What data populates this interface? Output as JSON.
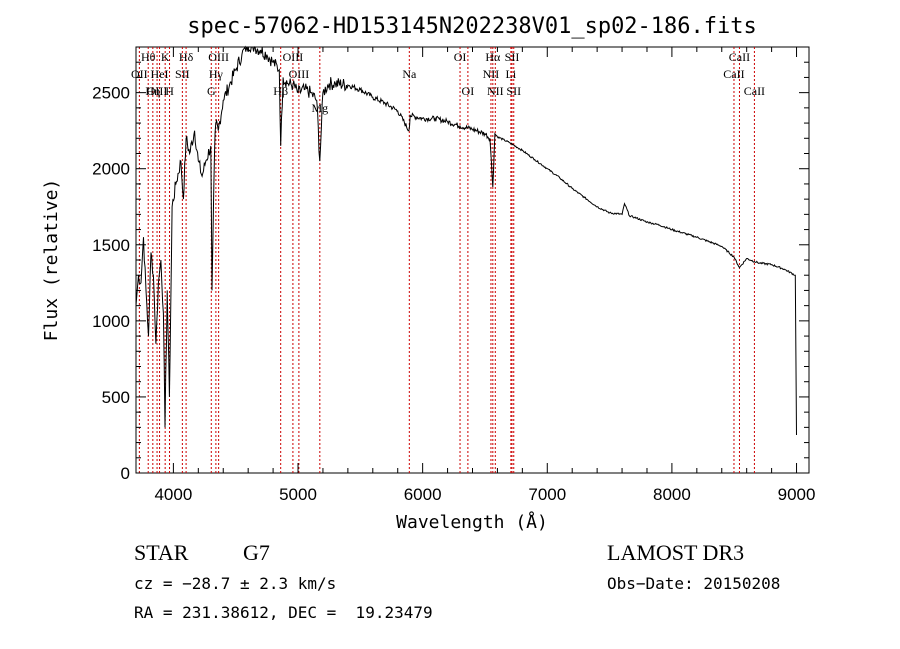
{
  "chart_data": {
    "type": "line",
    "title": "spec-57062-HD153145N202238V01_sp02-186.fits",
    "xlabel": "Wavelength (Å)",
    "ylabel": "Flux (relative)",
    "xlim": [
      3700,
      9100
    ],
    "ylim": [
      0,
      2800
    ],
    "xticks": [
      4000,
      5000,
      6000,
      7000,
      8000,
      9000
    ],
    "yticks": [
      0,
      500,
      1000,
      1500,
      2000,
      2500
    ],
    "series": [
      {
        "name": "flux",
        "x": [
          3700,
          3720,
          3740,
          3760,
          3780,
          3800,
          3820,
          3840,
          3860,
          3880,
          3900,
          3920,
          3933,
          3950,
          3968,
          3990,
          4020,
          4060,
          4080,
          4102,
          4130,
          4170,
          4200,
          4230,
          4260,
          4300,
          4310,
          4330,
          4340,
          4360,
          4400,
          4450,
          4500,
          4550,
          4600,
          4650,
          4700,
          4750,
          4800,
          4850,
          4861,
          4880,
          4920,
          4960,
          5000,
          5050,
          5100,
          5150,
          5175,
          5200,
          5250,
          5300,
          5400,
          5500,
          5600,
          5700,
          5800,
          5890,
          5900,
          6000,
          6100,
          6200,
          6300,
          6400,
          6500,
          6540,
          6563,
          6580,
          6600,
          6700,
          6800,
          6900,
          7000,
          7100,
          7200,
          7300,
          7400,
          7500,
          7600,
          7620,
          7660,
          7700,
          7800,
          7900,
          8000,
          8200,
          8400,
          8498,
          8542,
          8600,
          8662,
          8700,
          8800,
          8900,
          8990,
          9000
        ],
        "values": [
          1100,
          1300,
          1250,
          1550,
          1200,
          900,
          1450,
          1300,
          850,
          1250,
          1400,
          1050,
          300,
          1200,
          500,
          1750,
          1900,
          2050,
          1800,
          2200,
          2100,
          2250,
          2050,
          1950,
          2050,
          2150,
          1200,
          2100,
          2300,
          2250,
          2450,
          2550,
          2650,
          2750,
          2820,
          2800,
          2780,
          2750,
          2700,
          2650,
          2150,
          2600,
          2560,
          2550,
          2500,
          2520,
          2500,
          2450,
          2050,
          2500,
          2560,
          2560,
          2550,
          2520,
          2470,
          2430,
          2380,
          2250,
          2350,
          2330,
          2330,
          2310,
          2280,
          2260,
          2230,
          2200,
          1880,
          2230,
          2210,
          2170,
          2120,
          2060,
          2000,
          1940,
          1870,
          1810,
          1750,
          1710,
          1700,
          1770,
          1690,
          1680,
          1650,
          1630,
          1600,
          1550,
          1490,
          1420,
          1350,
          1410,
          1390,
          1380,
          1370,
          1340,
          1300,
          250
        ]
      }
    ],
    "line_markers": [
      {
        "label": "Hθ",
        "x": 3798,
        "row": 0
      },
      {
        "label": "OII",
        "x": 3727,
        "row": 1
      },
      {
        "label": "OIII",
        "x": 3869,
        "row": 2
      },
      {
        "label": "K",
        "x": 3934,
        "row": 0
      },
      {
        "label": "HeI",
        "x": 3889,
        "row": 1
      },
      {
        "label": "Hη",
        "x": 3835,
        "row": 2
      },
      {
        "label": "H",
        "x": 3969,
        "row": 2
      },
      {
        "label": "Hδ",
        "x": 4102,
        "row": 0
      },
      {
        "label": "SII",
        "x": 4072,
        "row": 1
      },
      {
        "label": "OIII",
        "x": 4363,
        "row": 0
      },
      {
        "label": "Hγ",
        "x": 4341,
        "row": 1
      },
      {
        "label": "G",
        "x": 4304,
        "row": 2
      },
      {
        "label": "OIII",
        "x": 4959,
        "row": 0
      },
      {
        "label": "OIII",
        "x": 5007,
        "row": 1
      },
      {
        "label": "Hβ",
        "x": 4861,
        "row": 2
      },
      {
        "label": "Mg",
        "x": 5175,
        "row": 3
      },
      {
        "label": "Na",
        "x": 5893,
        "row": 1
      },
      {
        "label": "OI",
        "x": 6300,
        "row": 0
      },
      {
        "label": "OI",
        "x": 6363,
        "row": 2
      },
      {
        "label": "Hα",
        "x": 6563,
        "row": 0
      },
      {
        "label": "NII",
        "x": 6548,
        "row": 1
      },
      {
        "label": "NII",
        "x": 6583,
        "row": 2
      },
      {
        "label": "SII",
        "x": 6717,
        "row": 0
      },
      {
        "label": "Li",
        "x": 6708,
        "row": 1
      },
      {
        "label": "SII",
        "x": 6731,
        "row": 2
      },
      {
        "label": "CaII",
        "x": 8542,
        "row": 0
      },
      {
        "label": "CaII",
        "x": 8498,
        "row": 1
      },
      {
        "label": "CaII",
        "x": 8662,
        "row": 2
      }
    ],
    "colors": {
      "axis": "#000000",
      "curve": "#000000",
      "marker": "#cc0000"
    }
  },
  "footer": {
    "class_label": "STAR",
    "subclass": "G7",
    "survey": "LAMOST DR3",
    "cz": "cz = −28.7 ± 2.3 km/s",
    "obs_date": "Obs−Date: 20150208",
    "coords": "RA = 231.38612, DEC =  19.23479"
  }
}
